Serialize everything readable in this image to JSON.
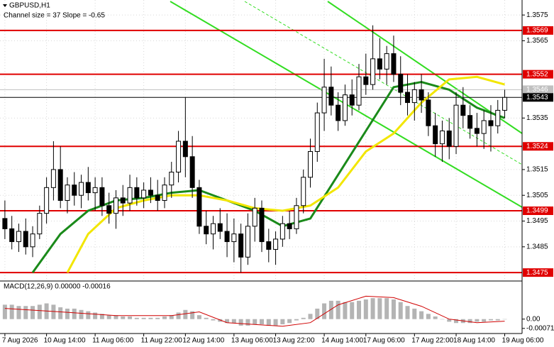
{
  "chart_data": [
    {
      "type": "candlestick",
      "title": "GBPUSD,H1",
      "annotation": "Channel size = 37 Slope = -0.65",
      "xlim": [
        -0.5,
        74.5
      ],
      "xticks": [
        {
          "value": 0,
          "label": "7 Aug 2026"
        },
        {
          "value": 6,
          "label": "10 Aug 14:00"
        },
        {
          "value": 13,
          "label": "11 Aug 06:00"
        },
        {
          "value": 20,
          "label": "11 Aug 22:00"
        },
        {
          "value": 26,
          "label": "12 Aug 14:00"
        },
        {
          "value": 33,
          "label": "13 Aug 06:00"
        },
        {
          "value": 39,
          "label": "13 Aug 22:00"
        },
        {
          "value": 46,
          "label": "14 Aug 14:00"
        },
        {
          "value": 52,
          "label": "17 Aug 06:00"
        },
        {
          "value": 59,
          "label": "17 Aug 22:00"
        },
        {
          "value": 65,
          "label": "18 Aug 14:00"
        },
        {
          "value": 72,
          "label": "19 Aug 06:00"
        }
      ],
      "ylim": [
        1.3472,
        1.358
      ],
      "yticks": [
        1.3575,
        1.3565,
        1.3535,
        1.3515,
        1.3505,
        1.3495,
        1.3485
      ],
      "grid": true,
      "open": [
        1.3496,
        1.3492,
        1.3487,
        1.3491,
        1.3485,
        1.349,
        1.3498,
        1.3508,
        1.3515,
        1.3503,
        1.3509,
        1.3505,
        1.351,
        1.3506,
        1.3508,
        1.3501,
        1.3498,
        1.3504,
        1.3502,
        1.3508,
        1.3504,
        1.3507,
        1.3505,
        1.3503,
        1.3509,
        1.3514,
        1.3526,
        1.352,
        1.3508,
        1.3493,
        1.349,
        1.3494,
        1.3491,
        1.3487,
        1.349,
        1.3481,
        1.3493,
        1.35,
        1.3487,
        1.3484,
        1.3488,
        1.3494,
        1.3492,
        1.3501,
        1.3512,
        1.3522,
        1.3537,
        1.3547,
        1.354,
        1.3534,
        1.3544,
        1.354,
        1.3551,
        1.3548,
        1.3558,
        1.3554,
        1.356,
        1.3552,
        1.3545,
        1.3541,
        1.3546,
        1.3542,
        1.3532,
        1.3525,
        1.353,
        1.3524,
        1.354,
        1.3536,
        1.3531,
        1.3529,
        1.3534,
        1.3532,
        1.3538
      ],
      "high": [
        1.3503,
        1.3497,
        1.3494,
        1.3496,
        1.3493,
        1.3501,
        1.3512,
        1.3526,
        1.3524,
        1.3512,
        1.3514,
        1.3513,
        1.3516,
        1.3512,
        1.3512,
        1.3506,
        1.3507,
        1.3509,
        1.3513,
        1.3512,
        1.351,
        1.3512,
        1.3511,
        1.3512,
        1.3518,
        1.353,
        1.3543,
        1.3528,
        1.3511,
        1.3499,
        1.3497,
        1.35,
        1.3498,
        1.3496,
        1.3494,
        1.3498,
        1.3504,
        1.3503,
        1.3492,
        1.3491,
        1.3497,
        1.3499,
        1.3504,
        1.3515,
        1.3527,
        1.3541,
        1.3558,
        1.3555,
        1.3545,
        1.3548,
        1.355,
        1.3556,
        1.356,
        1.3571,
        1.3566,
        1.3563,
        1.3567,
        1.3559,
        1.3552,
        1.3549,
        1.3552,
        1.3545,
        1.3537,
        1.3534,
        1.3535,
        1.3545,
        1.3547,
        1.354,
        1.3537,
        1.3538,
        1.354,
        1.3542,
        1.3546
      ],
      "low": [
        1.3488,
        1.3484,
        1.3483,
        1.3482,
        1.3481,
        1.3488,
        1.3494,
        1.3503,
        1.35,
        1.3498,
        1.3501,
        1.35,
        1.3503,
        1.3499,
        1.3497,
        1.3494,
        1.3492,
        1.3497,
        1.3499,
        1.3501,
        1.35,
        1.3502,
        1.3499,
        1.35,
        1.3504,
        1.351,
        1.3512,
        1.3504,
        1.349,
        1.3486,
        1.3484,
        1.3488,
        1.3481,
        1.3479,
        1.3475,
        1.3478,
        1.3487,
        1.3483,
        1.3479,
        1.3478,
        1.3485,
        1.3488,
        1.349,
        1.3498,
        1.3508,
        1.3518,
        1.353,
        1.3536,
        1.353,
        1.3532,
        1.3536,
        1.3538,
        1.3544,
        1.3546,
        1.355,
        1.3548,
        1.3549,
        1.354,
        1.3536,
        1.3534,
        1.3537,
        1.3528,
        1.352,
        1.3518,
        1.3519,
        1.3521,
        1.3531,
        1.3527,
        1.3524,
        1.3523,
        1.3522,
        1.3529,
        1.3535
      ],
      "close": [
        1.3492,
        1.3487,
        1.3491,
        1.3485,
        1.349,
        1.3498,
        1.3508,
        1.3515,
        1.3503,
        1.3509,
        1.3505,
        1.351,
        1.3506,
        1.3508,
        1.3501,
        1.3498,
        1.3504,
        1.3502,
        1.3508,
        1.3504,
        1.3507,
        1.3505,
        1.3503,
        1.3509,
        1.3514,
        1.3526,
        1.352,
        1.3508,
        1.3493,
        1.349,
        1.3494,
        1.3491,
        1.3487,
        1.349,
        1.3481,
        1.3493,
        1.35,
        1.3487,
        1.3484,
        1.3488,
        1.3494,
        1.3492,
        1.3501,
        1.3512,
        1.3522,
        1.3537,
        1.3547,
        1.354,
        1.3534,
        1.3544,
        1.354,
        1.3551,
        1.3548,
        1.3558,
        1.3554,
        1.356,
        1.3552,
        1.3545,
        1.3541,
        1.3546,
        1.3542,
        1.3532,
        1.3525,
        1.353,
        1.3524,
        1.354,
        1.3536,
        1.3531,
        1.3529,
        1.3534,
        1.3532,
        1.3538,
        1.3543
      ],
      "up_color": "#ffffff",
      "down_color": "#000000",
      "lines": [
        {
          "color": "#1a8a1a",
          "x": [
            4,
            8,
            12,
            16,
            20,
            24,
            28,
            32,
            36,
            40,
            44,
            48,
            52,
            56,
            60,
            64,
            68,
            72
          ],
          "values": [
            1.3475,
            1.349,
            1.3499,
            1.3503,
            1.3504,
            1.3506,
            1.3507,
            1.3503,
            1.3499,
            1.3493,
            1.3496,
            1.3513,
            1.353,
            1.3547,
            1.3549,
            1.3546,
            1.3539,
            1.3535
          ]
        },
        {
          "color": "#f2e600",
          "x": [
            9,
            12,
            16,
            20,
            24,
            28,
            32,
            36,
            40,
            44,
            48,
            52,
            56,
            60,
            64,
            68,
            72
          ],
          "values": [
            1.3475,
            1.349,
            1.35,
            1.3503,
            1.3505,
            1.3505,
            1.3503,
            1.35,
            1.3499,
            1.3501,
            1.3508,
            1.3522,
            1.3529,
            1.3541,
            1.355,
            1.3551,
            1.3548
          ]
        }
      ],
      "levels": [
        1.3569,
        1.3552,
        1.3524,
        1.3499,
        1.3475
      ],
      "level_color": "#e00000",
      "price_markers": [
        {
          "price": 1.3546,
          "color": "#c0c0c0"
        },
        {
          "price": 1.3543,
          "color": "#000000"
        }
      ]
    },
    {
      "type": "macd",
      "title": "MACD(12,26,9) 0.00000 -0.00016",
      "xlim": [
        -0.5,
        74.5
      ],
      "ylim": [
        -0.0011,
        0.0028
      ],
      "yticks": [
        {
          "value": 0,
          "label": "0.00"
        },
        -0.00071
      ],
      "histogram": [
        0.0011,
        0.0011,
        0.001,
        0.001,
        0.001,
        0.0011,
        0.0012,
        0.0011,
        0.0009,
        0.0008,
        0.0008,
        0.0007,
        0.0006,
        0.0005,
        0.0004,
        0.0003,
        0.0003,
        0.0002,
        0.0002,
        0.0001,
        0.0001,
        0.0001,
        0.0001,
        0.0002,
        0.0003,
        0.0005,
        0.0007,
        0.0006,
        0.0003,
        0.0001,
        -0.0001,
        -0.0002,
        -0.0003,
        -0.0003,
        -0.0005,
        -0.0005,
        -0.0004,
        -0.0004,
        -0.0005,
        -0.0005,
        -0.0004,
        -0.0003,
        -0.0001,
        0.0001,
        0.0004,
        0.0008,
        0.0012,
        0.0014,
        0.0014,
        0.0013,
        0.0013,
        0.0014,
        0.0015,
        0.0016,
        0.0016,
        0.0016,
        0.0015,
        0.0013,
        0.001,
        0.0008,
        0.0006,
        0.0004,
        0.0002,
        0,
        -0.0002,
        -0.0003,
        -0.0003,
        -0.0003,
        -0.0002,
        -0.0002,
        -0.0001,
        -0.0001,
        0
      ],
      "histogram_color": "#b4b4b4",
      "signal": {
        "color": "#d00000",
        "x": [
          0,
          8,
          16,
          24,
          28,
          32,
          40,
          44,
          48,
          52,
          56,
          60,
          64,
          68,
          72
        ],
        "values": [
          0.00082,
          0.00055,
          0.00027,
          0.00027,
          0.00055,
          -0.00027,
          -0.00055,
          -0.00027,
          0.00109,
          0.00175,
          0.00164,
          0.00098,
          0,
          -0.00027,
          -0.00016
        ]
      }
    }
  ]
}
